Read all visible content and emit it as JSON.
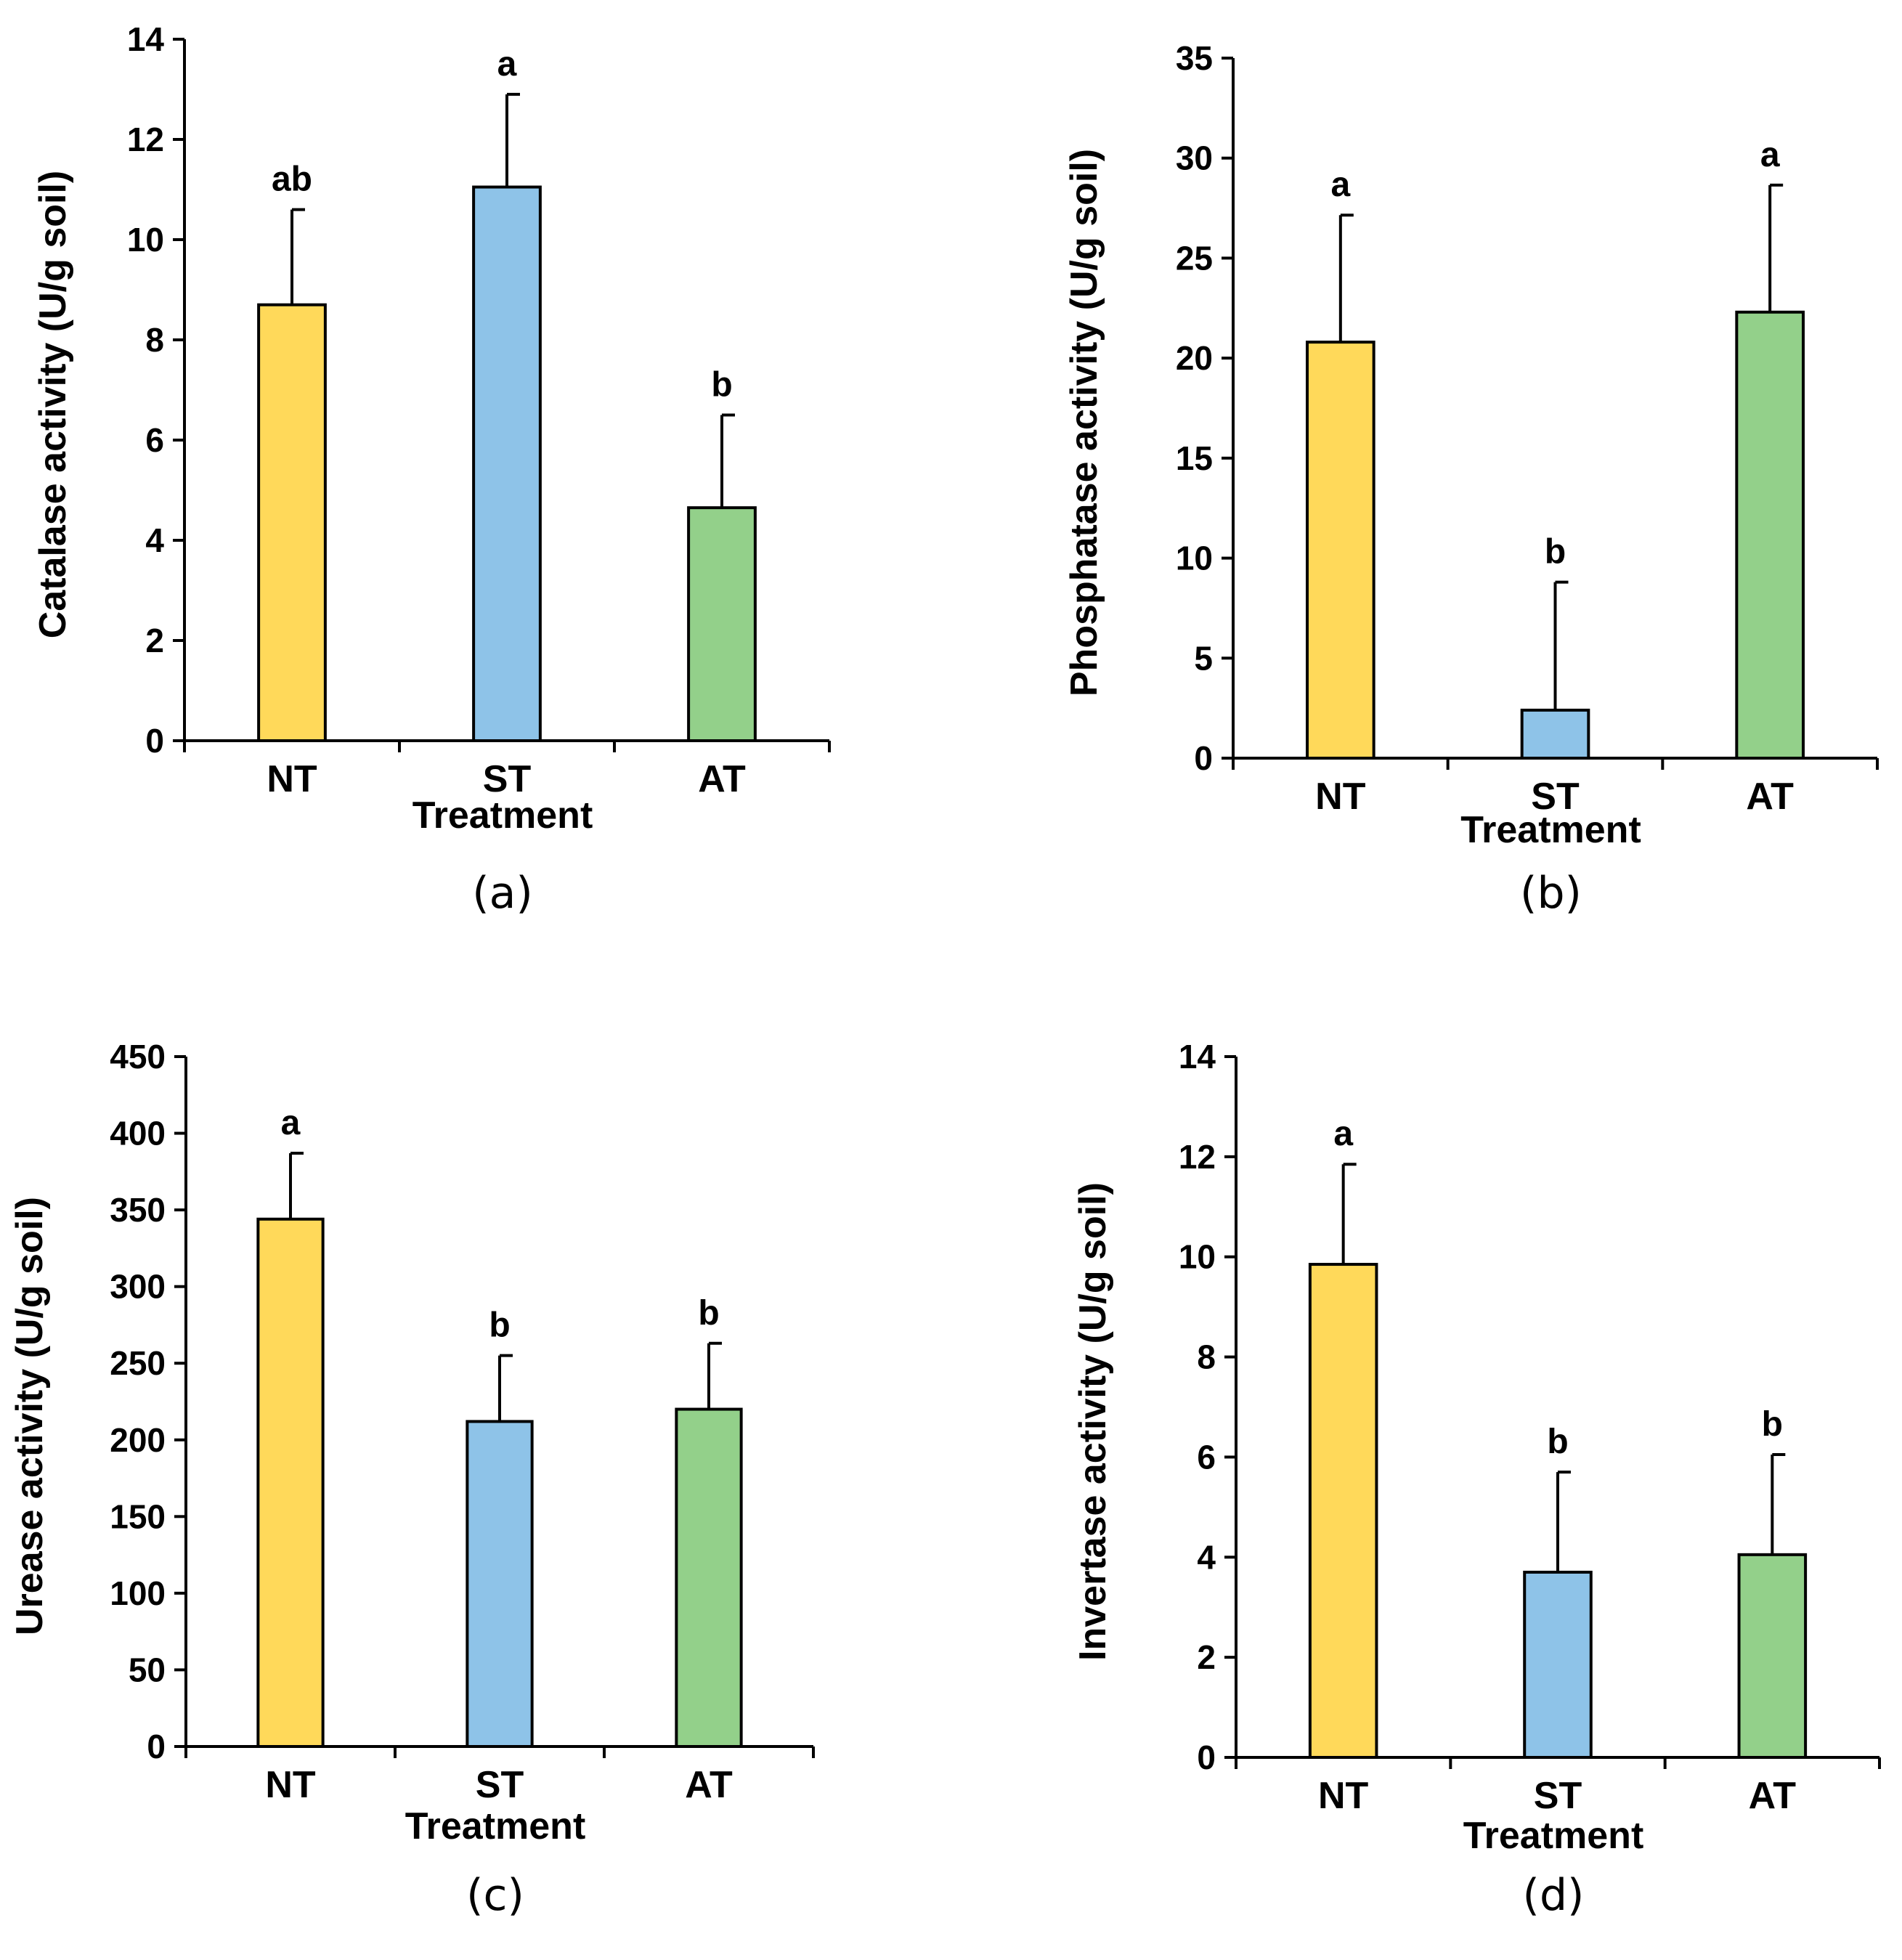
{
  "chart_data": [
    {
      "type": "bar",
      "panel": "(a)",
      "categories": [
        "NT",
        "ST",
        "AT"
      ],
      "values": [
        8.7,
        11.05,
        4.65
      ],
      "errors": [
        1.9,
        1.85,
        1.85
      ],
      "significance": [
        "ab",
        "a",
        "b"
      ],
      "colors": [
        "#FFD95A",
        "#8EC3E8",
        "#93D08A"
      ],
      "xlabel": "Treatment",
      "ylabel": "Catalase activity (U/g soil)",
      "ylim": [
        0,
        14
      ],
      "yticks": [
        0,
        2,
        4,
        6,
        8,
        10,
        12,
        14
      ]
    },
    {
      "type": "bar",
      "panel": "(b)",
      "categories": [
        "NT",
        "ST",
        "AT"
      ],
      "values": [
        20.8,
        2.4,
        22.3
      ],
      "errors": [
        6.35,
        6.4,
        6.35
      ],
      "significance": [
        "a",
        "b",
        "a"
      ],
      "colors": [
        "#FFD95A",
        "#8EC3E8",
        "#93D08A"
      ],
      "xlabel": "Treatment",
      "ylabel": "Phosphatase activity (U/g soil)",
      "ylim": [
        0,
        35
      ],
      "yticks": [
        0,
        5,
        10,
        15,
        20,
        25,
        30,
        35
      ]
    },
    {
      "type": "bar",
      "panel": "(c)",
      "categories": [
        "NT",
        "ST",
        "AT"
      ],
      "values": [
        344,
        212,
        220
      ],
      "errors": [
        43,
        43,
        43
      ],
      "significance": [
        "a",
        "b",
        "b"
      ],
      "colors": [
        "#FFD95A",
        "#8EC3E8",
        "#93D08A"
      ],
      "xlabel": "Treatment",
      "ylabel": "Urease activity (U/g soil)",
      "ylim": [
        0,
        450
      ],
      "yticks": [
        0,
        50,
        100,
        150,
        200,
        250,
        300,
        350,
        400,
        450
      ]
    },
    {
      "type": "bar",
      "panel": "(d)",
      "categories": [
        "NT",
        "ST",
        "AT"
      ],
      "values": [
        9.85,
        3.7,
        4.05
      ],
      "errors": [
        2.0,
        2.0,
        2.0
      ],
      "significance": [
        "a",
        "b",
        "b"
      ],
      "colors": [
        "#FFD95A",
        "#8EC3E8",
        "#93D08A"
      ],
      "xlabel": "Treatment",
      "ylabel": "Invertase activity (U/g soil)",
      "ylim": [
        0,
        14
      ],
      "yticks": [
        0,
        2,
        4,
        6,
        8,
        10,
        12,
        14
      ]
    }
  ]
}
